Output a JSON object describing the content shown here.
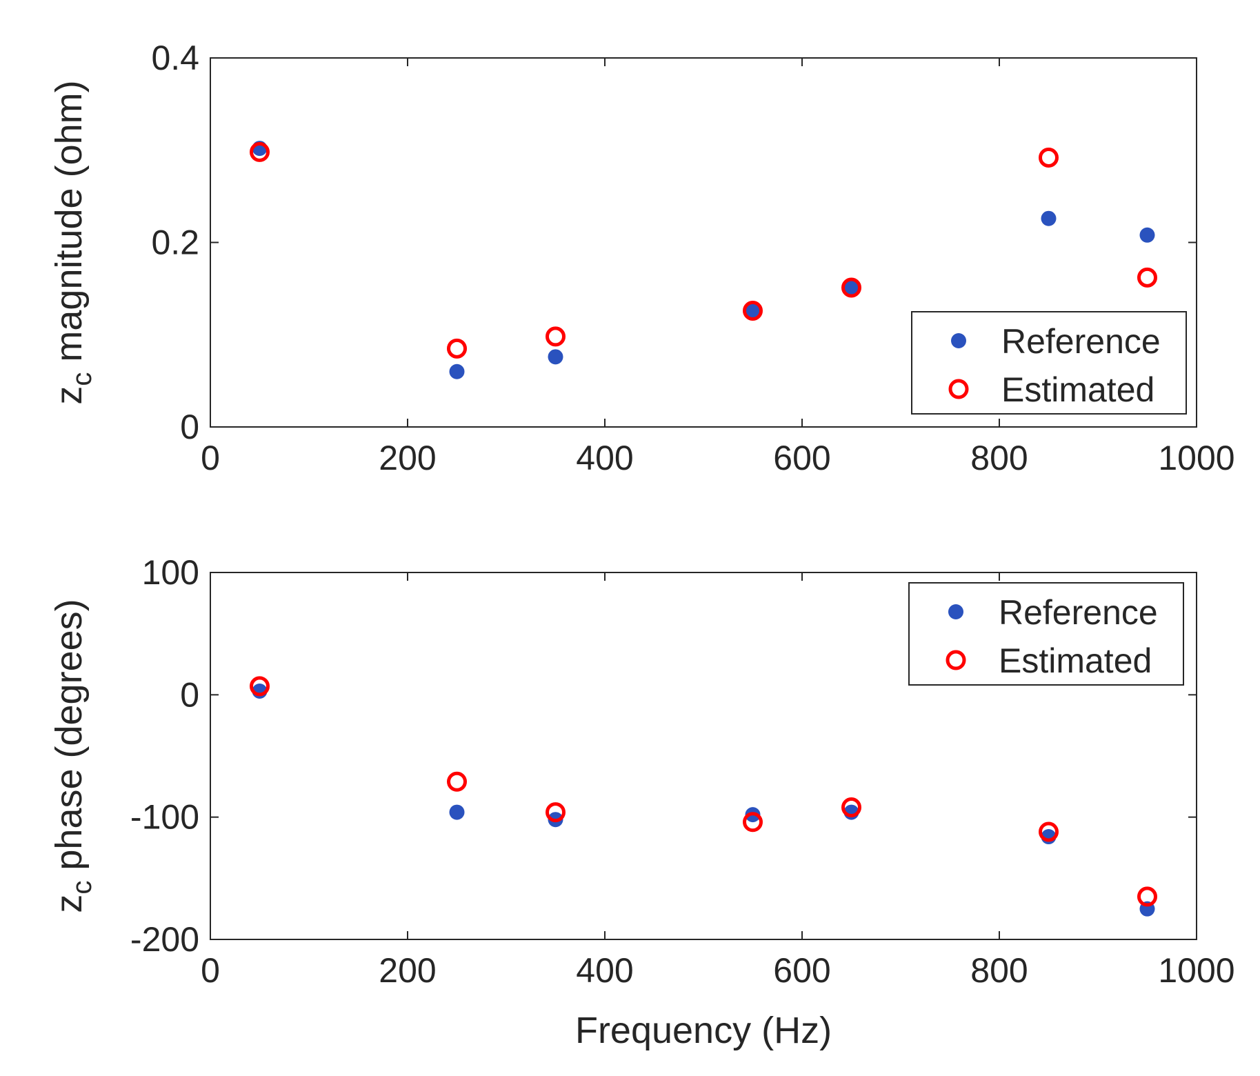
{
  "chart_data": [
    {
      "type": "scatter",
      "title": "",
      "xlabel": "",
      "ylabel": "z",
      "ylabel_subscript": "c",
      "ylabel_suffix": " magnitude (ohm)",
      "xlim": [
        0,
        1000
      ],
      "ylim": [
        0,
        0.4
      ],
      "xticks": [
        0,
        200,
        400,
        600,
        800,
        1000
      ],
      "xtick_labels": [
        "0",
        "200",
        "400",
        "600",
        "800",
        "1000"
      ],
      "yticks": [
        0,
        0.2,
        0.4
      ],
      "ytick_labels": [
        "0",
        "0.2",
        "0.4"
      ],
      "grid": false,
      "legend_position": "bottom-right",
      "x": [
        50,
        250,
        350,
        550,
        650,
        850,
        950
      ],
      "series": [
        {
          "name": "Reference",
          "marker": "filled-circle",
          "color": "#2a52be",
          "values": [
            0.302,
            0.06,
            0.076,
            0.126,
            0.151,
            0.226,
            0.208
          ]
        },
        {
          "name": "Estimated",
          "marker": "open-circle",
          "color": "#ff0000",
          "values": [
            0.298,
            0.085,
            0.098,
            0.126,
            0.151,
            0.292,
            0.162
          ]
        }
      ]
    },
    {
      "type": "scatter",
      "title": "",
      "xlabel": "Frequency (Hz)",
      "ylabel": "z",
      "ylabel_subscript": "c",
      "ylabel_suffix": " phase (degrees)",
      "xlim": [
        0,
        1000
      ],
      "ylim": [
        -200,
        100
      ],
      "xticks": [
        0,
        200,
        400,
        600,
        800,
        1000
      ],
      "xtick_labels": [
        "0",
        "200",
        "400",
        "600",
        "800",
        "1000"
      ],
      "yticks": [
        -200,
        -100,
        0,
        100
      ],
      "ytick_labels": [
        "-200",
        "-100",
        "0",
        "100"
      ],
      "grid": false,
      "legend_position": "top-right",
      "x": [
        50,
        250,
        350,
        550,
        650,
        850,
        950
      ],
      "series": [
        {
          "name": "Reference",
          "marker": "filled-circle",
          "color": "#2a52be",
          "values": [
            3,
            -96,
            -102,
            -98,
            -96,
            -116,
            -175
          ]
        },
        {
          "name": "Estimated",
          "marker": "open-circle",
          "color": "#ff0000",
          "values": [
            7,
            -71,
            -96,
            -104,
            -92,
            -112,
            -165
          ]
        }
      ]
    }
  ]
}
